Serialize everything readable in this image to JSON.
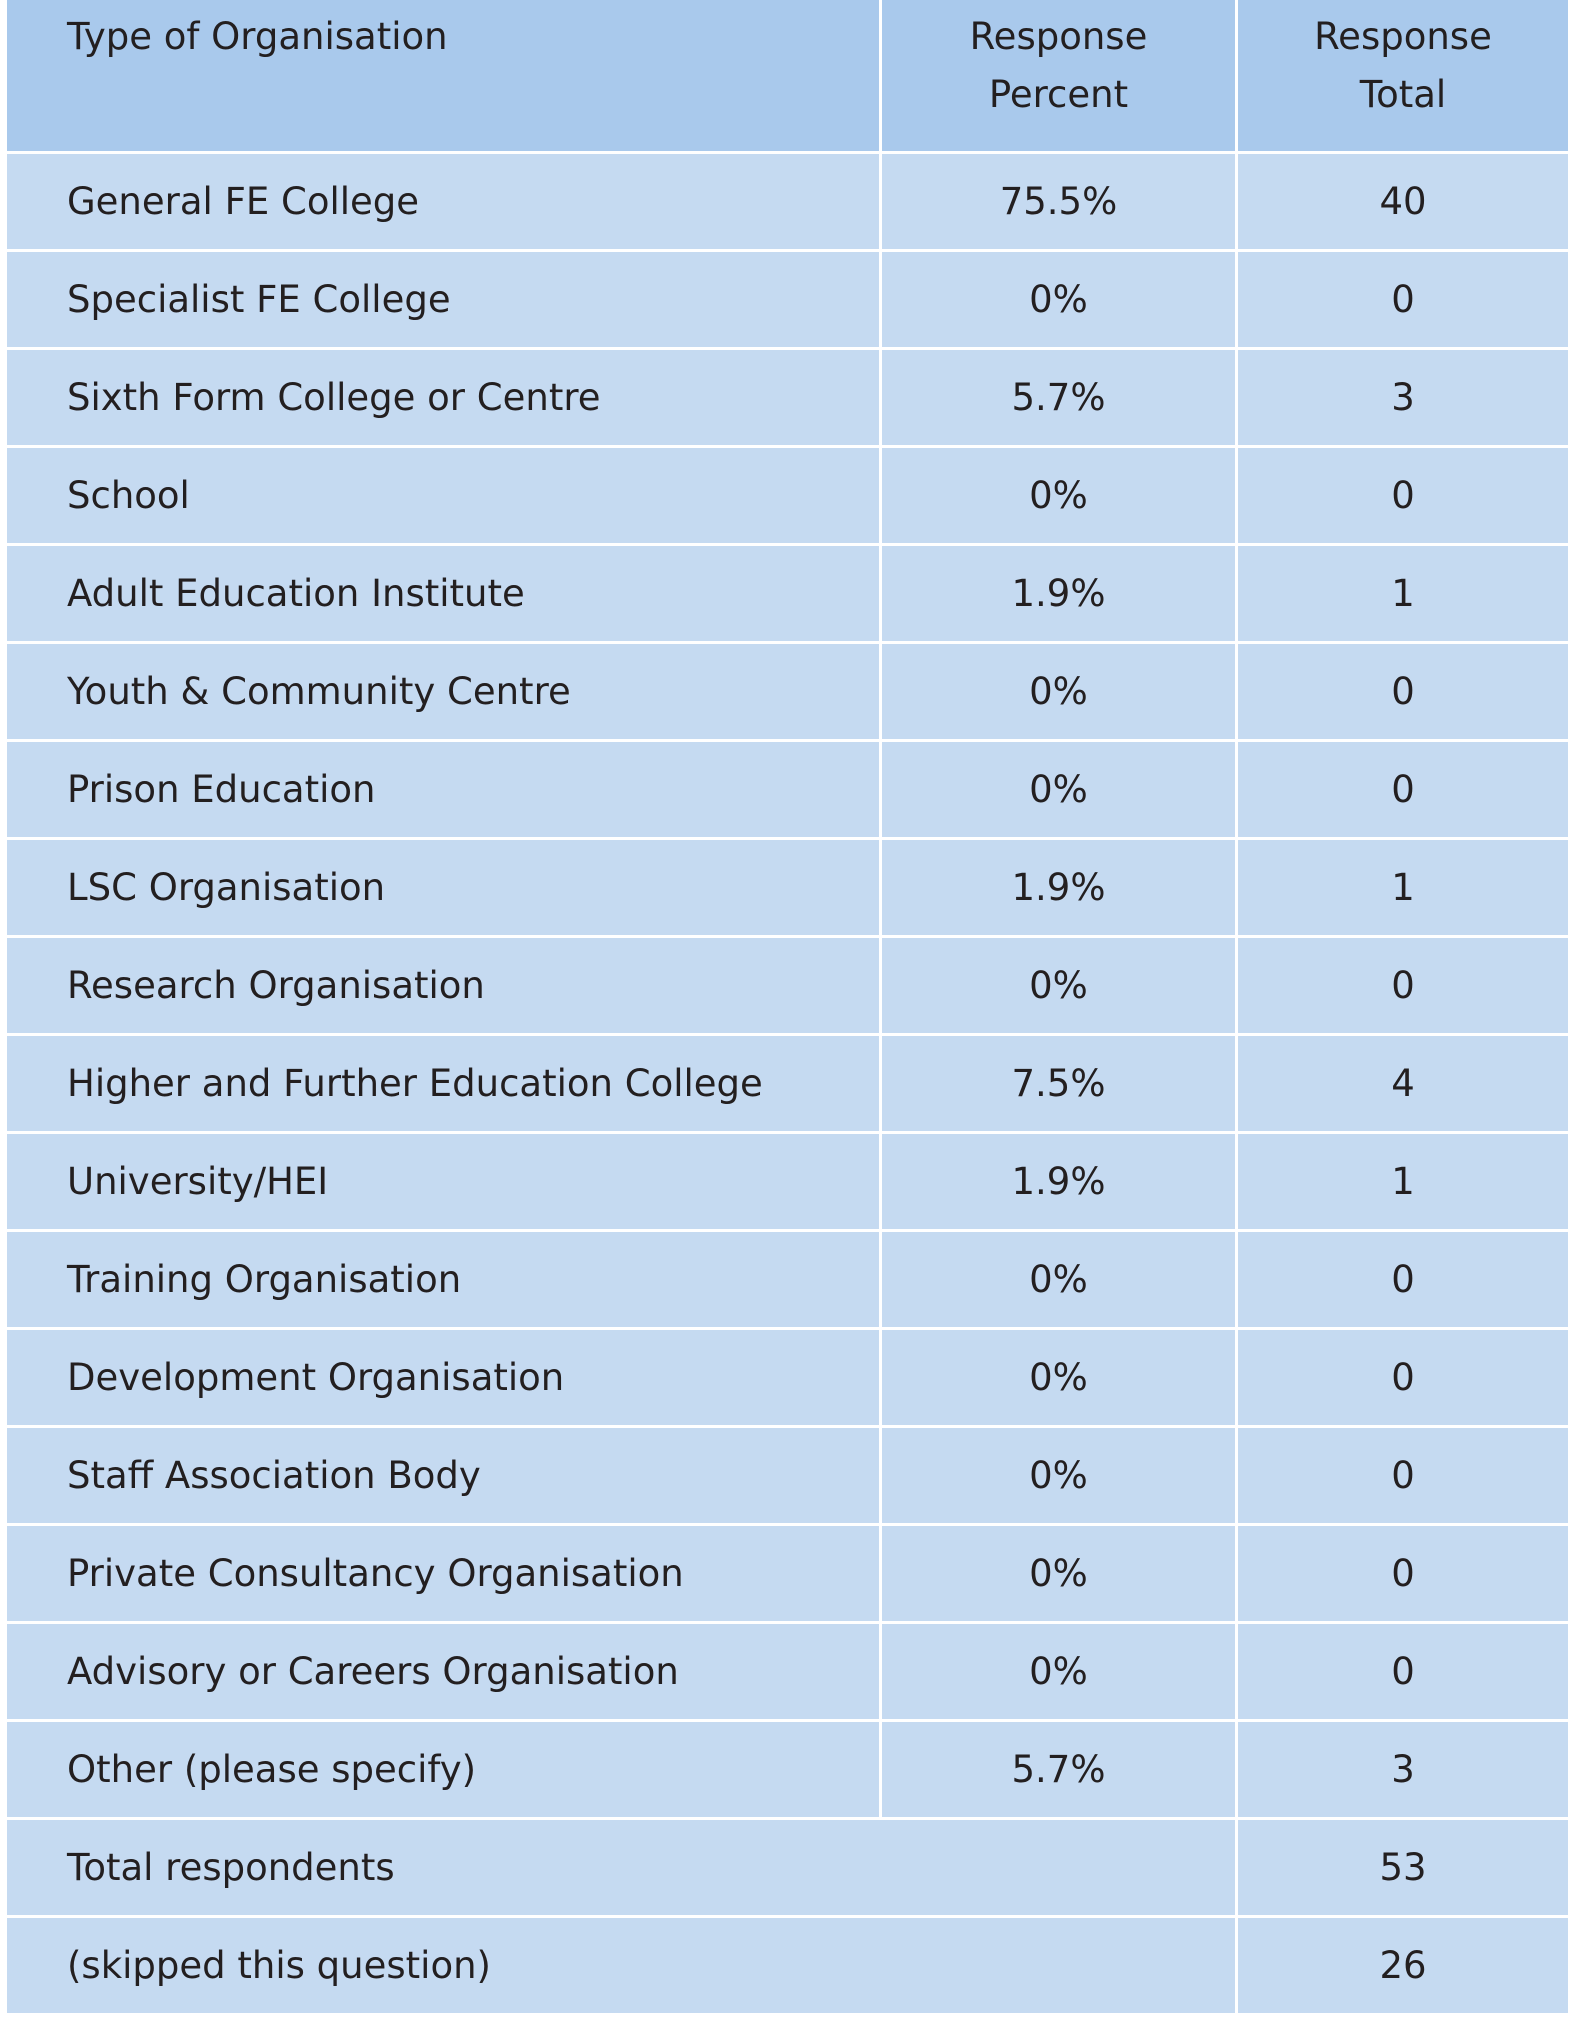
{
  "table": {
    "header": [
      "Type of Organisation",
      "Response Percent",
      "Response Total"
    ],
    "rows": [
      [
        "General FE College",
        "75.5%",
        40
      ],
      [
        "Specialist FE College",
        "0%",
        0
      ],
      [
        "Sixth Form College or Centre",
        "5.7%",
        3
      ],
      [
        "School",
        "0%",
        0
      ],
      [
        "Adult Education Institute",
        "1.9%",
        1
      ],
      [
        "Youth & Community Centre",
        "0%",
        0
      ],
      [
        "Prison Education",
        "0%",
        0
      ],
      [
        "LSC Organisation",
        "1.9%",
        1
      ],
      [
        "Research Organisation",
        "0%",
        0
      ],
      [
        "Higher and Further Education College",
        "7.5%",
        4
      ],
      [
        "University/HEI",
        "1.9%",
        1
      ],
      [
        "Training Organisation",
        "0%",
        0
      ],
      [
        "Development Organisation",
        "0%",
        0
      ],
      [
        "Staff Association Body",
        "0%",
        0
      ],
      [
        "Private Consultancy Organisation",
        "0%",
        0
      ],
      [
        "Advisory or Careers Organisation",
        "0%",
        0
      ],
      [
        "Other (please specify)",
        "5.7%",
        3
      ]
    ],
    "footer": [
      [
        "Total respondents",
        53
      ],
      [
        "(skipped this question)",
        26
      ]
    ]
  }
}
